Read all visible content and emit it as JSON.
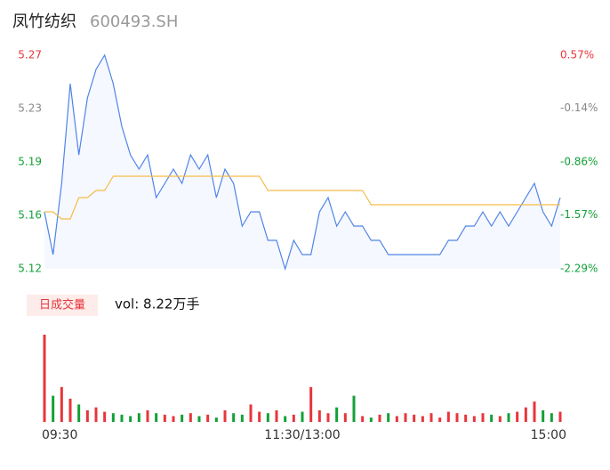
{
  "header": {
    "name": "凤竹纺织",
    "code": "600493.SH"
  },
  "chart_data": {
    "type": "line",
    "prev_close": 5.24,
    "up_color": "#e8353b",
    "down_color": "#14a038",
    "flat_color": "#888888",
    "x": [
      0,
      4,
      8,
      12,
      16,
      20,
      24,
      28,
      32,
      36,
      40,
      44,
      48,
      52,
      56,
      60,
      64,
      68,
      72,
      76,
      80,
      84,
      88,
      92,
      96,
      100,
      104,
      108,
      112,
      116,
      120,
      124,
      128,
      132,
      136,
      140,
      144,
      148,
      152,
      156,
      160,
      164,
      168,
      172,
      176,
      180,
      184,
      188,
      192,
      196,
      200,
      204,
      208,
      212,
      216,
      220,
      224,
      228,
      232,
      236,
      240
    ],
    "xlim": [
      0,
      240
    ],
    "xticks": [
      {
        "value": 0,
        "label": "09:30"
      },
      {
        "value": 120,
        "label": "11:30/13:00"
      },
      {
        "value": 240,
        "label": "15:00"
      }
    ],
    "ylim": [
      5.12,
      5.27
    ],
    "yticks": [
      5.12,
      {
        "value": 5.1575,
        "label": "5.16"
      },
      {
        "value": 5.195,
        "label": "5.19"
      },
      {
        "value": 5.2325,
        "label": "5.23"
      },
      5.27
    ],
    "y2lim": [
      -2.29,
      0.57
    ],
    "y2ticks": [
      {
        "value": -2.29,
        "label": "-2.29%"
      },
      {
        "value": -1.57,
        "label": "-1.57%"
      },
      {
        "value": -0.86,
        "label": "-0.86%"
      },
      {
        "value": -0.14,
        "label": "-0.14%"
      },
      {
        "value": 0.57,
        "label": "0.57%"
      }
    ],
    "series": [
      {
        "name": "price",
        "color": "#4f84e8",
        "values": [
          5.16,
          5.13,
          5.18,
          5.25,
          5.2,
          5.24,
          5.26,
          5.27,
          5.25,
          5.22,
          5.2,
          5.19,
          5.2,
          5.17,
          5.18,
          5.19,
          5.18,
          5.2,
          5.19,
          5.2,
          5.17,
          5.19,
          5.18,
          5.15,
          5.16,
          5.16,
          5.14,
          5.14,
          5.12,
          5.14,
          5.13,
          5.13,
          5.16,
          5.17,
          5.15,
          5.16,
          5.15,
          5.15,
          5.14,
          5.14,
          5.13,
          5.13,
          5.13,
          5.13,
          5.13,
          5.13,
          5.13,
          5.14,
          5.14,
          5.15,
          5.15,
          5.16,
          5.15,
          5.16,
          5.15,
          5.16,
          5.17,
          5.18,
          5.16,
          5.15,
          5.17
        ]
      },
      {
        "name": "avg",
        "color": "#f5bc4a",
        "values": [
          5.16,
          5.16,
          5.155,
          5.155,
          5.17,
          5.17,
          5.175,
          5.175,
          5.185,
          5.185,
          5.185,
          5.185,
          5.185,
          5.185,
          5.185,
          5.185,
          5.185,
          5.185,
          5.185,
          5.185,
          5.185,
          5.185,
          5.185,
          5.185,
          5.185,
          5.185,
          5.175,
          5.175,
          5.175,
          5.175,
          5.175,
          5.175,
          5.175,
          5.175,
          5.175,
          5.175,
          5.175,
          5.175,
          5.165,
          5.165,
          5.165,
          5.165,
          5.165,
          5.165,
          5.165,
          5.165,
          5.165,
          5.165,
          5.165,
          5.165,
          5.165,
          5.165,
          5.165,
          5.165,
          5.165,
          5.165,
          5.165,
          5.165,
          5.165,
          5.165,
          5.165
        ]
      }
    ],
    "volume": {
      "legend": "日成交量",
      "summary": "vol: 8.22万手",
      "values": [
        3000,
        900,
        1200,
        800,
        600,
        400,
        500,
        350,
        300,
        250,
        200,
        300,
        400,
        300,
        250,
        200,
        250,
        300,
        200,
        250,
        150,
        400,
        300,
        250,
        600,
        350,
        300,
        400,
        200,
        250,
        350,
        1200,
        400,
        300,
        500,
        300,
        900,
        200,
        150,
        250,
        300,
        200,
        300,
        250,
        200,
        300,
        150,
        350,
        300,
        250,
        200,
        300,
        250,
        200,
        300,
        350,
        500,
        700,
        400,
        300,
        350
      ]
    }
  }
}
